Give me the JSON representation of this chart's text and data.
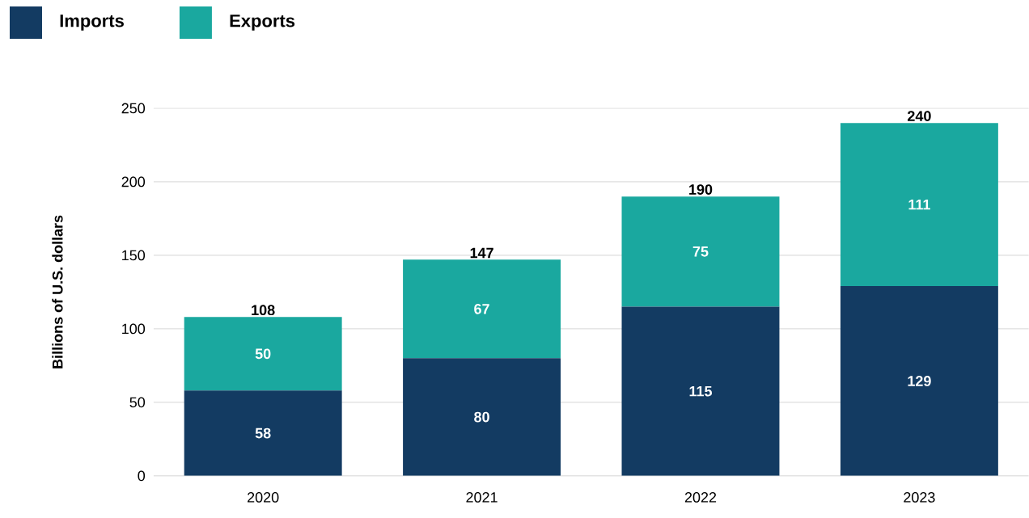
{
  "chart_data": {
    "type": "bar",
    "stacked": true,
    "categories": [
      "2020",
      "2021",
      "2022",
      "2023"
    ],
    "series": [
      {
        "name": "Imports",
        "color": "#133b62",
        "values": [
          58,
          80,
          115,
          129
        ],
        "value_labels": [
          "58",
          "80",
          "115",
          "129"
        ]
      },
      {
        "name": "Exports",
        "color": "#1aa89f",
        "values": [
          50,
          67,
          75,
          111
        ],
        "value_labels": [
          "50",
          "67",
          "75",
          "111"
        ]
      }
    ],
    "totals": [
      "108",
      "147",
      "190",
      "240"
    ],
    "ylabel": "Billions of U.S. dollars",
    "ylim": [
      0,
      250
    ],
    "yticks": [
      0,
      50,
      100,
      150,
      200,
      250
    ],
    "grid": "y",
    "legend": "top left"
  }
}
